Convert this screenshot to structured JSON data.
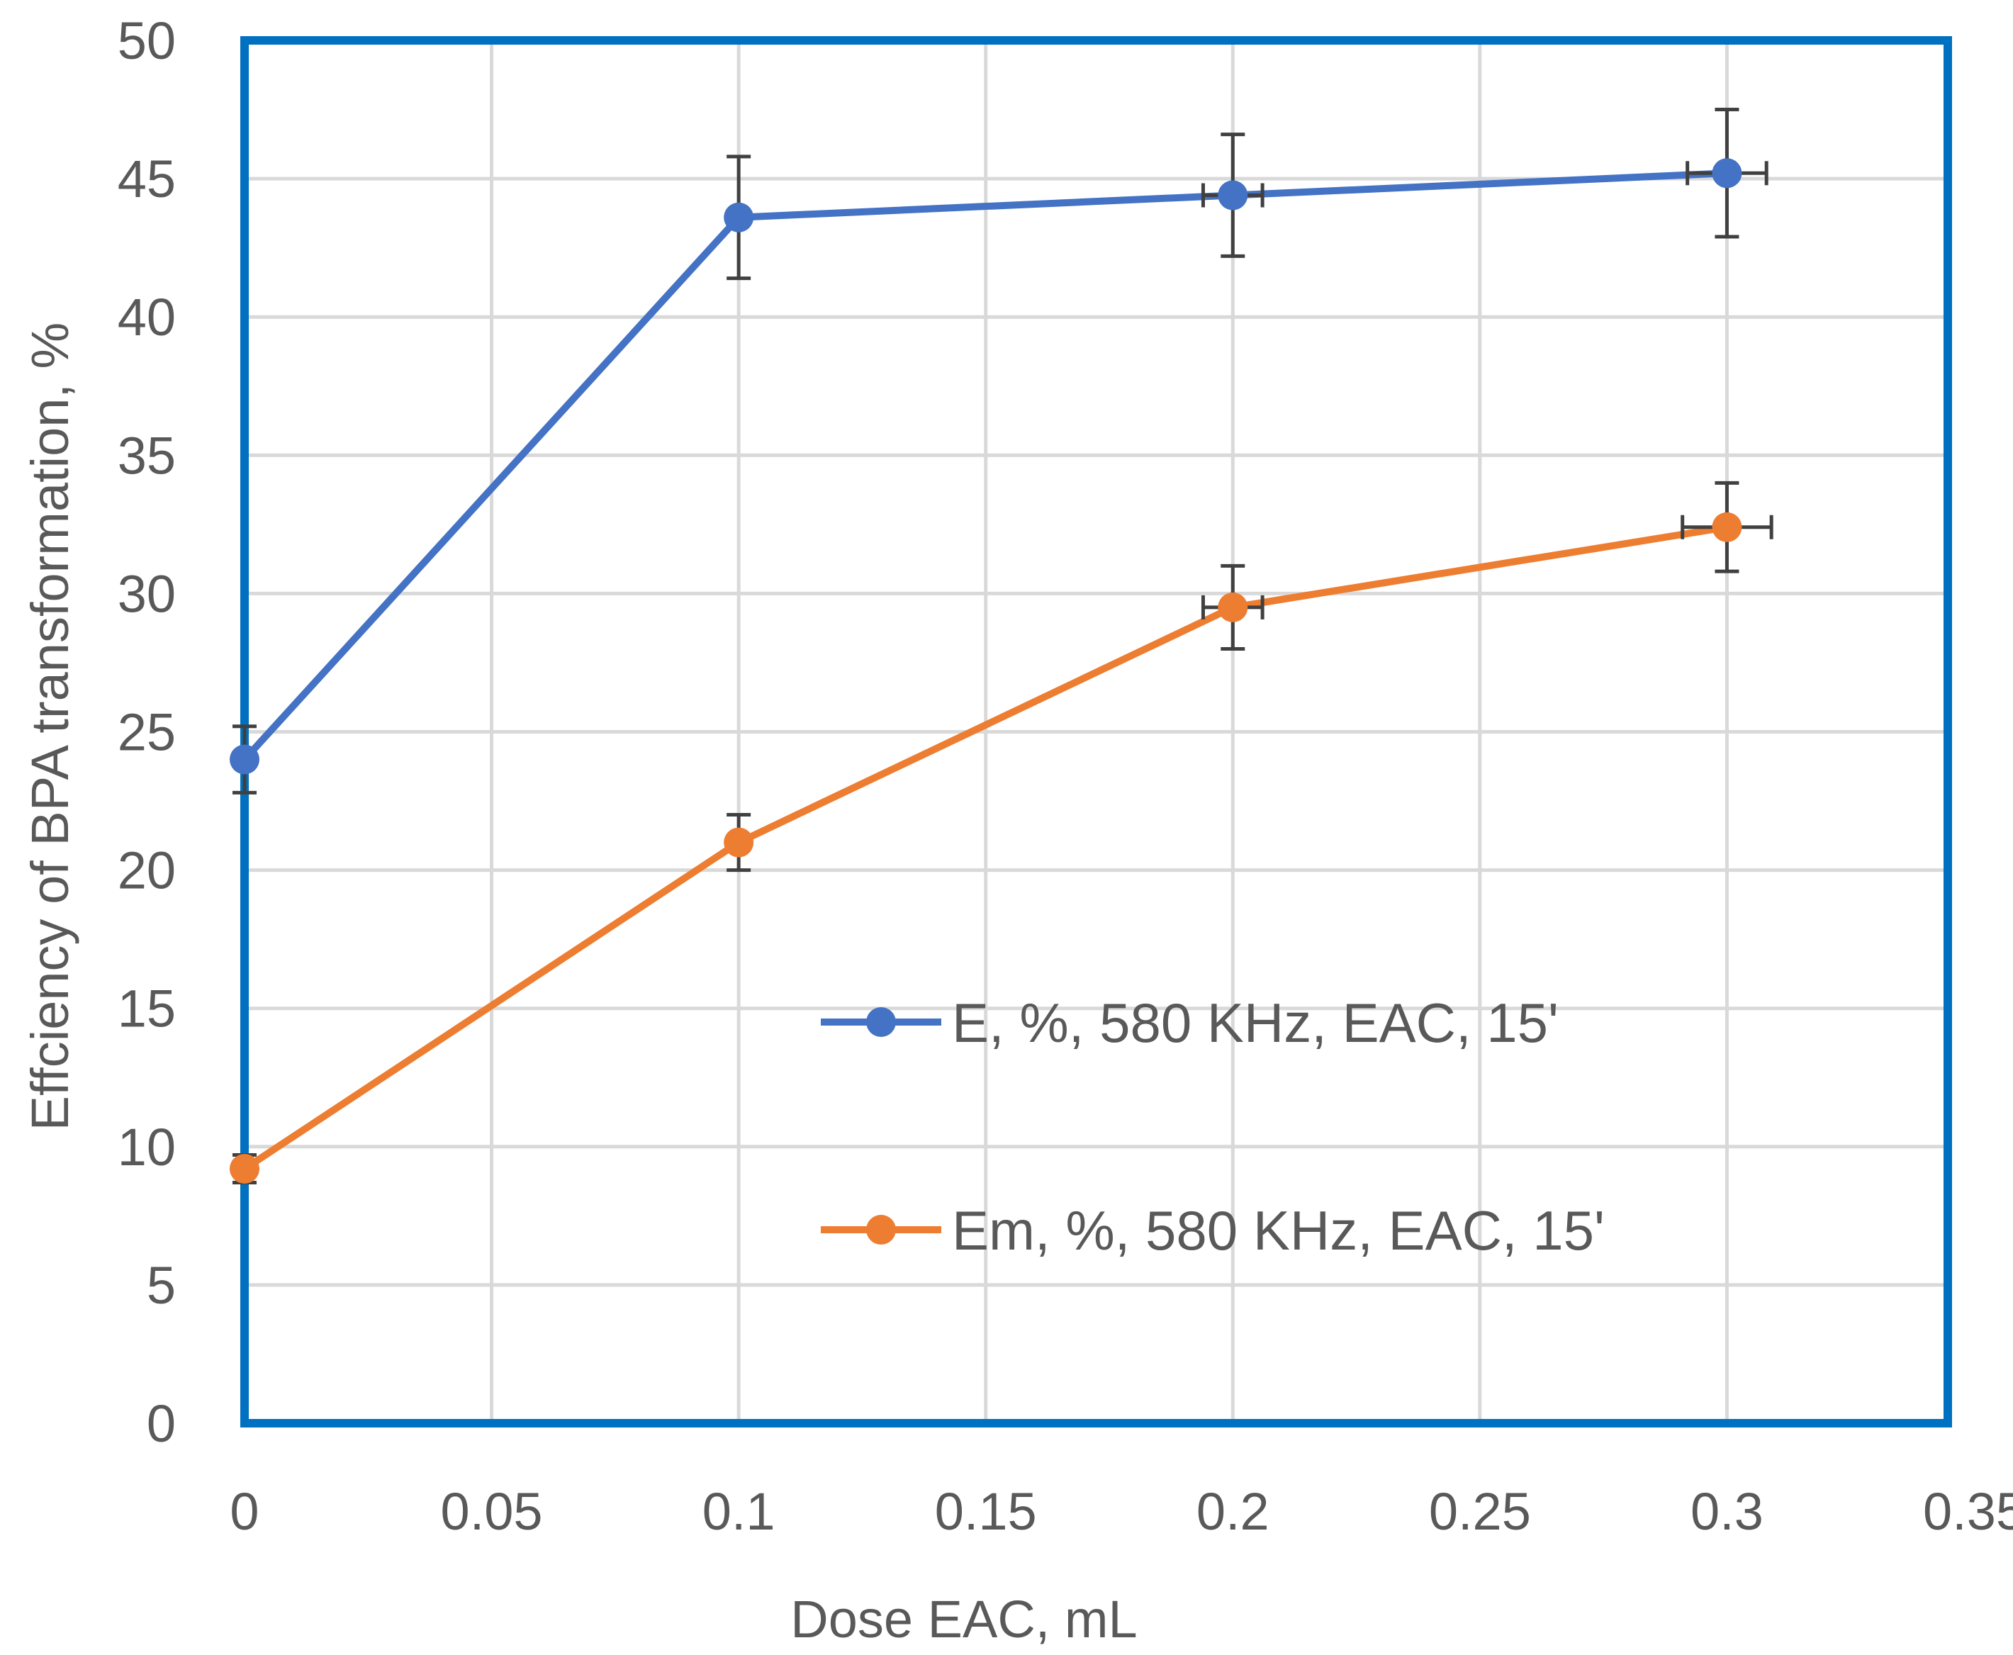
{
  "chart_data": {
    "type": "line",
    "title": "",
    "xlabel": "Dose EAC, mL",
    "ylabel": "Effciency of BPA transformation, %",
    "xlim": [
      0,
      0.35
    ],
    "ylim": [
      0,
      50
    ],
    "x_ticks": [
      "0",
      "0.05",
      "0.1",
      "0.15",
      "0.2",
      "0.25",
      "0.3",
      "0.35"
    ],
    "y_ticks": [
      "0",
      "5",
      "10",
      "15",
      "20",
      "25",
      "30",
      "35",
      "40",
      "45",
      "50"
    ],
    "grid": true,
    "legend_position": "center-right",
    "series": [
      {
        "name": "E, %, 580 KHz, EAC, 15'",
        "color": "#4472C4",
        "x": [
          0,
          0.1,
          0.2,
          0.3
        ],
        "y": [
          24.0,
          43.6,
          44.4,
          45.2
        ],
        "y_err": [
          1.2,
          2.2,
          2.2,
          2.3
        ],
        "x_err": [
          0,
          0,
          0.006,
          0.008
        ]
      },
      {
        "name": "Em, %, 580 KHz, EAC, 15'",
        "color": "#ED7D31",
        "x": [
          0,
          0.1,
          0.2,
          0.3
        ],
        "y": [
          9.2,
          21.0,
          29.5,
          32.4
        ],
        "y_err": [
          0.5,
          1.0,
          1.5,
          1.6
        ],
        "x_err": [
          0,
          0,
          0.006,
          0.009
        ]
      }
    ],
    "plot_border_color": "#0070C0",
    "error_bar_color": "#404040",
    "grid_color": "#D9D9D9"
  }
}
